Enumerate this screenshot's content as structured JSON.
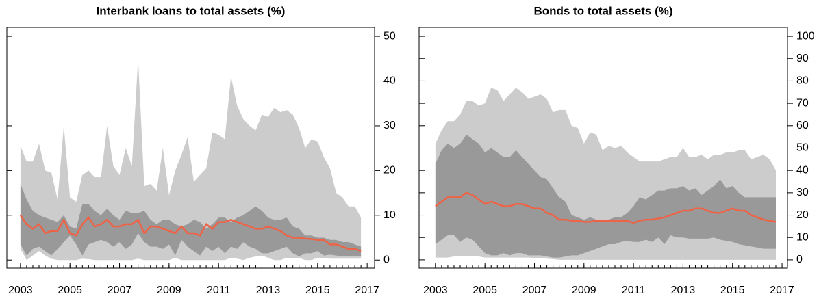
{
  "chart_data": [
    {
      "type": "fan",
      "title": "Interbank loans to total assets (%)",
      "x": [
        2003,
        2003.25,
        2003.5,
        2003.75,
        2004,
        2004.25,
        2004.5,
        2004.75,
        2005,
        2005.25,
        2005.5,
        2005.75,
        2006,
        2006.25,
        2006.5,
        2006.75,
        2007,
        2007.25,
        2007.5,
        2007.75,
        2008,
        2008.25,
        2008.5,
        2008.75,
        2009,
        2009.25,
        2009.5,
        2009.75,
        2010,
        2010.25,
        2010.5,
        2010.75,
        2011,
        2011.25,
        2011.5,
        2011.75,
        2012,
        2012.25,
        2012.5,
        2012.75,
        2013,
        2013.25,
        2013.5,
        2013.75,
        2014,
        2014.25,
        2014.5,
        2014.75,
        2015,
        2015.25,
        2015.5,
        2015.75,
        2016,
        2016.25,
        2016.5,
        2016.75
      ],
      "xlim": [
        2002.45,
        2017.3
      ],
      "xticks": [
        2003,
        2005,
        2007,
        2009,
        2011,
        2013,
        2015,
        2017
      ],
      "ylim": [
        -1.8,
        52
      ],
      "yticks": [
        0,
        10,
        20,
        30,
        40,
        50
      ],
      "bands": [
        {
          "color": "#cccccc",
          "lower": [
            2.5,
            0,
            1,
            2,
            1,
            0.3,
            0,
            0,
            0,
            0,
            0.3,
            0.2,
            0,
            0,
            0,
            0,
            0,
            0,
            0,
            0.3,
            0,
            0,
            0,
            0,
            0,
            0.5,
            0,
            0,
            0,
            0,
            0,
            0,
            0,
            0,
            0.5,
            0.3,
            0,
            0.5,
            0.8,
            1,
            0.5,
            0,
            0,
            0.5,
            0.3,
            0.5,
            0,
            0,
            0.5,
            0.5,
            0.3,
            0.3,
            0.3,
            0.3,
            0.3,
            0.3
          ],
          "upper": [
            25.5,
            22,
            22,
            26,
            20,
            19.5,
            13.5,
            30,
            14,
            13,
            19,
            20,
            18.5,
            18.5,
            30,
            21,
            19,
            25,
            21,
            45,
            16.5,
            17,
            15.5,
            25,
            14.5,
            20,
            23.5,
            27.5,
            17.5,
            19,
            20.5,
            28.5,
            28,
            27,
            41,
            34.5,
            31.5,
            30,
            29,
            32.5,
            32,
            34,
            33,
            33.5,
            32.5,
            29.5,
            25,
            27,
            26.5,
            23,
            20.5,
            15,
            14,
            12,
            12,
            9.5
          ]
        },
        {
          "color": "#999999",
          "lower": [
            3.5,
            1,
            2.5,
            3,
            2,
            1,
            2.5,
            4,
            5.5,
            3.5,
            1,
            3.5,
            4,
            4.5,
            4,
            3,
            4,
            2.5,
            3.5,
            6,
            4,
            3,
            3,
            2.5,
            3.5,
            1,
            4.5,
            3,
            2,
            1,
            3,
            2,
            3,
            1.5,
            3,
            2.5,
            4,
            3,
            2.5,
            1.5,
            1.5,
            2,
            2.5,
            3,
            1.5,
            0.8,
            1.5,
            1.5,
            2,
            1,
            1.2,
            1,
            0.8,
            0.8,
            0.8,
            0.8
          ],
          "upper": [
            17,
            13.5,
            11,
            10,
            9.5,
            9,
            8.5,
            10,
            7.5,
            7,
            12.5,
            12.5,
            11,
            10,
            11.5,
            10,
            9,
            11,
            10.5,
            10.5,
            11,
            9,
            8,
            9,
            9,
            8,
            7.5,
            8,
            9,
            8.5,
            7,
            8,
            9.5,
            9.5,
            8.5,
            9.5,
            10,
            11,
            12,
            11,
            9.5,
            9,
            9,
            9.5,
            7.5,
            7,
            5.5,
            5.5,
            5,
            5,
            4.5,
            4.5,
            4,
            4,
            3.5,
            3
          ]
        }
      ],
      "line": {
        "color": "#ee6346",
        "values": [
          10,
          8,
          7,
          8,
          6,
          6.5,
          6.5,
          9,
          6,
          5.5,
          8,
          9.5,
          7.5,
          8,
          9,
          7.5,
          7.5,
          8,
          8,
          9,
          6,
          7.5,
          7.5,
          7,
          6.5,
          6,
          7.5,
          6,
          6,
          5.5,
          8,
          7,
          8.5,
          8.5,
          9,
          8.5,
          8,
          7.5,
          7,
          7,
          7.5,
          7,
          6.5,
          5.5,
          5,
          5,
          4.8,
          4.7,
          4.5,
          4.5,
          3.5,
          3.5,
          3,
          2.5,
          2.5,
          2
        ]
      }
    },
    {
      "type": "fan",
      "title": "Bonds to total assets (%)",
      "x": [
        2003,
        2003.25,
        2003.5,
        2003.75,
        2004,
        2004.25,
        2004.5,
        2004.75,
        2005,
        2005.25,
        2005.5,
        2005.75,
        2006,
        2006.25,
        2006.5,
        2006.75,
        2007,
        2007.25,
        2007.5,
        2007.75,
        2008,
        2008.25,
        2008.5,
        2008.75,
        2009,
        2009.25,
        2009.5,
        2009.75,
        2010,
        2010.25,
        2010.5,
        2010.75,
        2011,
        2011.25,
        2011.5,
        2011.75,
        2012,
        2012.25,
        2012.5,
        2012.75,
        2013,
        2013.25,
        2013.5,
        2013.75,
        2014,
        2014.25,
        2014.5,
        2014.75,
        2015,
        2015.25,
        2015.5,
        2015.75,
        2016,
        2016.25,
        2016.5,
        2016.75
      ],
      "xlim": [
        2002.34,
        2017.22
      ],
      "xticks": [
        2003,
        2005,
        2007,
        2009,
        2011,
        2013,
        2015,
        2017
      ],
      "ylim": [
        -3.7,
        104
      ],
      "yticks": [
        0,
        10,
        20,
        30,
        40,
        50,
        60,
        70,
        80,
        90,
        100
      ],
      "bands": [
        {
          "color": "#cccccc",
          "lower": [
            1,
            1,
            1,
            1.5,
            1.5,
            1.5,
            1.5,
            1.5,
            1,
            1,
            1,
            1,
            1,
            1,
            1,
            1,
            0.8,
            0.8,
            0.5,
            0.3,
            0,
            0,
            0,
            0,
            0,
            0,
            0,
            0,
            0,
            0,
            0,
            0,
            0,
            0,
            0,
            0,
            0,
            0,
            0,
            0,
            0,
            0,
            0,
            0,
            0,
            0,
            0,
            0,
            0,
            0,
            0,
            0,
            0,
            0,
            0,
            0
          ],
          "upper": [
            52,
            58,
            62,
            62,
            65,
            71,
            71,
            69,
            70,
            77,
            76,
            71,
            74,
            77,
            75,
            72,
            73,
            74,
            72,
            66,
            67,
            67,
            60,
            59,
            52,
            57,
            56,
            49,
            51,
            50,
            51,
            48,
            46,
            44,
            44,
            44,
            44,
            45,
            46,
            46,
            50,
            46,
            46,
            47,
            45,
            47,
            47,
            48,
            48,
            49,
            49,
            45,
            46,
            47,
            45,
            40
          ]
        },
        {
          "color": "#999999",
          "lower": [
            7,
            9,
            11,
            11,
            8,
            10,
            9,
            6,
            3,
            2,
            2,
            3,
            2,
            3,
            3,
            2,
            2,
            2,
            1.5,
            1,
            1,
            1.5,
            2,
            2,
            3,
            4,
            5,
            6,
            7,
            7,
            8,
            8.5,
            8,
            8,
            9,
            8,
            10,
            7,
            11,
            10,
            10,
            9.5,
            9.5,
            9.5,
            9.5,
            10,
            9,
            8.5,
            8,
            7,
            6.5,
            6,
            5.5,
            5,
            5,
            5
          ],
          "upper": [
            43,
            49,
            52,
            50,
            52,
            56,
            54,
            52,
            48,
            50,
            48,
            46,
            46,
            49,
            46,
            43,
            40,
            37,
            36,
            32,
            28,
            26,
            20,
            19,
            18,
            19,
            18,
            18,
            18,
            19,
            19,
            21,
            24,
            28,
            27,
            29,
            31,
            31,
            32,
            32,
            33,
            31,
            32,
            29,
            31,
            33,
            36,
            32,
            33,
            30,
            28,
            28,
            28,
            28,
            28,
            28
          ]
        }
      ],
      "line": {
        "color": "#ee6346",
        "values": [
          24,
          26,
          28,
          28,
          28,
          30,
          29,
          27,
          25,
          26,
          25,
          24,
          24,
          25,
          25,
          24,
          23,
          23,
          21,
          20,
          18,
          18,
          17.5,
          17.5,
          17,
          17,
          17.5,
          17.5,
          17.5,
          17.5,
          17.5,
          17.5,
          16.5,
          17.5,
          18,
          18,
          18.5,
          19,
          20,
          21,
          22,
          22,
          23,
          23,
          22,
          21,
          21,
          22,
          23,
          22,
          22,
          20,
          19,
          18,
          17.5,
          17
        ]
      }
    }
  ]
}
